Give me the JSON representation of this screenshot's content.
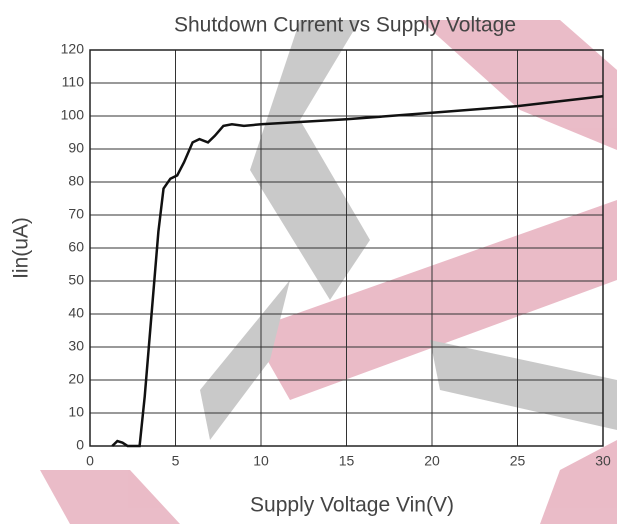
{
  "chart_data": {
    "type": "line",
    "title": "Shutdown Current vs Supply Voltage",
    "x_label": "Supply Voltage Vin(V)",
    "y_label": "Iin(uA)",
    "x": [
      1.3,
      1.6,
      1.9,
      2.2,
      2.9,
      3.2,
      3.6,
      4.0,
      4.3,
      4.7,
      5.1,
      5.5,
      6.0,
      6.4,
      6.9,
      7.3,
      7.8,
      8.3,
      9,
      10,
      15,
      20,
      25,
      30
    ],
    "series": [
      {
        "name": "Iin",
        "color": "#111111",
        "values": [
          0,
          1.5,
          1,
          0,
          0,
          15,
          40,
          65,
          78,
          81,
          82,
          86,
          92,
          93,
          92,
          94,
          97,
          97.5,
          97,
          97.5,
          99,
          101,
          103,
          106
        ]
      }
    ],
    "xlim": [
      0,
      30
    ],
    "xticks": [
      0,
      5,
      10,
      15,
      20,
      25,
      30
    ],
    "ylim": [
      0,
      120
    ],
    "yticks": [
      0,
      10,
      20,
      30,
      40,
      50,
      60,
      70,
      80,
      90,
      100,
      110,
      120
    ],
    "grid": true
  }
}
